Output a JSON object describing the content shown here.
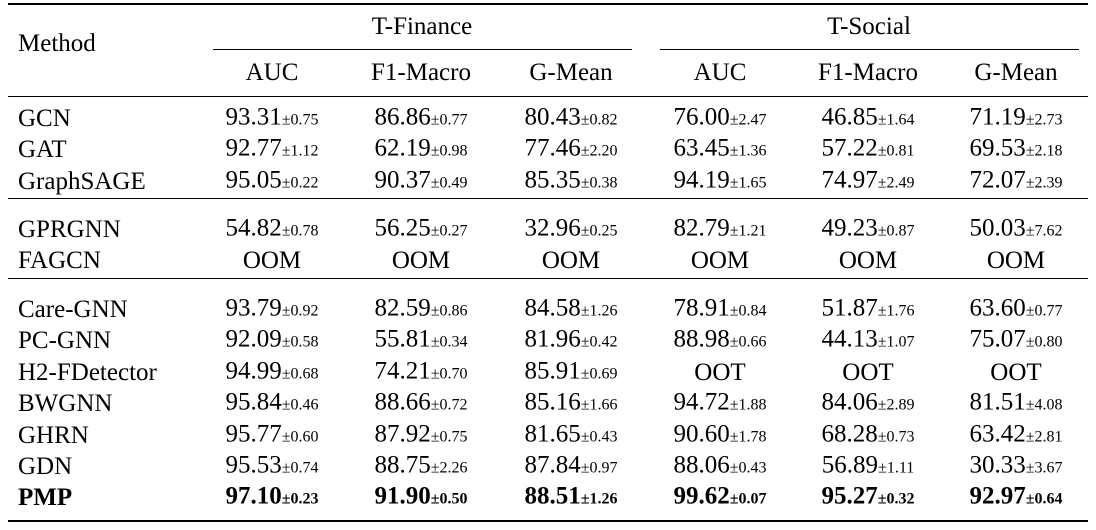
{
  "header": {
    "method": "Method",
    "groups": [
      {
        "name": "T-Finance",
        "columns": [
          "AUC",
          "F1-Macro",
          "G-Mean"
        ]
      },
      {
        "name": "T-Social",
        "columns": [
          "AUC",
          "F1-Macro",
          "G-Mean"
        ]
      }
    ]
  },
  "sections": [
    {
      "rows": [
        {
          "method": "GCN",
          "cells": [
            [
              "93.31",
              "±0.75"
            ],
            [
              "86.86",
              "±0.77"
            ],
            [
              "80.43",
              "±0.82"
            ],
            [
              "76.00",
              "±2.47"
            ],
            [
              "46.85",
              "±1.64"
            ],
            [
              "71.19",
              "±2.73"
            ]
          ]
        },
        {
          "method": "GAT",
          "cells": [
            [
              "92.77",
              "±1.12"
            ],
            [
              "62.19",
              "±0.98"
            ],
            [
              "77.46",
              "±2.20"
            ],
            [
              "63.45",
              "±1.36"
            ],
            [
              "57.22",
              "±0.81"
            ],
            [
              "69.53",
              "±2.18"
            ]
          ]
        },
        {
          "method": "GraphSAGE",
          "cells": [
            [
              "95.05",
              "±0.22"
            ],
            [
              "90.37",
              "±0.49"
            ],
            [
              "85.35",
              "±0.38"
            ],
            [
              "94.19",
              "±1.65"
            ],
            [
              "74.97",
              "±2.49"
            ],
            [
              "72.07",
              "±2.39"
            ]
          ]
        }
      ]
    },
    {
      "rows": [
        {
          "method": "GPRGNN",
          "cells": [
            [
              "54.82",
              "±0.78"
            ],
            [
              "56.25",
              "±0.27"
            ],
            [
              "32.96",
              "±0.25"
            ],
            [
              "82.79",
              "±1.21"
            ],
            [
              "49.23",
              "±0.87"
            ],
            [
              "50.03",
              "±7.62"
            ]
          ]
        },
        {
          "method": "FAGCN",
          "cells": [
            [
              "OOM"
            ],
            [
              "OOM"
            ],
            [
              "OOM"
            ],
            [
              "OOM"
            ],
            [
              "OOM"
            ],
            [
              "OOM"
            ]
          ]
        }
      ]
    },
    {
      "rows": [
        {
          "method": "Care-GNN",
          "cells": [
            [
              "93.79",
              "±0.92"
            ],
            [
              "82.59",
              "±0.86"
            ],
            [
              "84.58",
              "±1.26"
            ],
            [
              "78.91",
              "±0.84"
            ],
            [
              "51.87",
              "±1.76"
            ],
            [
              "63.60",
              "±0.77"
            ]
          ]
        },
        {
          "method": "PC-GNN",
          "cells": [
            [
              "92.09",
              "±0.58"
            ],
            [
              "55.81",
              "±0.34"
            ],
            [
              "81.96",
              "±0.42"
            ],
            [
              "88.98",
              "±0.66"
            ],
            [
              "44.13",
              "±1.07"
            ],
            [
              "75.07",
              "±0.80"
            ]
          ]
        },
        {
          "method": "H2-FDetector",
          "cells": [
            [
              "94.99",
              "±0.68"
            ],
            [
              "74.21",
              "±0.70"
            ],
            [
              "85.91",
              "±0.69"
            ],
            [
              "OOT"
            ],
            [
              "OOT"
            ],
            [
              "OOT"
            ]
          ]
        },
        {
          "method": "BWGNN",
          "cells": [
            [
              "95.84",
              "±0.46"
            ],
            [
              "88.66",
              "±0.72"
            ],
            [
              "85.16",
              "±1.66"
            ],
            [
              "94.72",
              "±1.88"
            ],
            [
              "84.06",
              "±2.89"
            ],
            [
              "81.51",
              "±4.08"
            ]
          ]
        },
        {
          "method": "GHRN",
          "cells": [
            [
              "95.77",
              "±0.60"
            ],
            [
              "87.92",
              "±0.75"
            ],
            [
              "81.65",
              "±0.43"
            ],
            [
              "90.60",
              "±1.78"
            ],
            [
              "68.28",
              "±0.73"
            ],
            [
              "63.42",
              "±2.81"
            ]
          ]
        },
        {
          "method": "GDN",
          "cells": [
            [
              "95.53",
              "±0.74"
            ],
            [
              "88.75",
              "±2.26"
            ],
            [
              "87.84",
              "±0.97"
            ],
            [
              "88.06",
              "±0.43"
            ],
            [
              "56.89",
              "±1.11"
            ],
            [
              "30.33",
              "±3.67"
            ]
          ]
        },
        {
          "method": "PMP",
          "bold": true,
          "cells": [
            [
              "97.10",
              "±0.23"
            ],
            [
              "91.90",
              "±0.50"
            ],
            [
              "88.51",
              "±1.26"
            ],
            [
              "99.62",
              "±0.07"
            ],
            [
              "95.27",
              "±0.32"
            ],
            [
              "92.97",
              "±0.64"
            ]
          ]
        }
      ]
    }
  ]
}
